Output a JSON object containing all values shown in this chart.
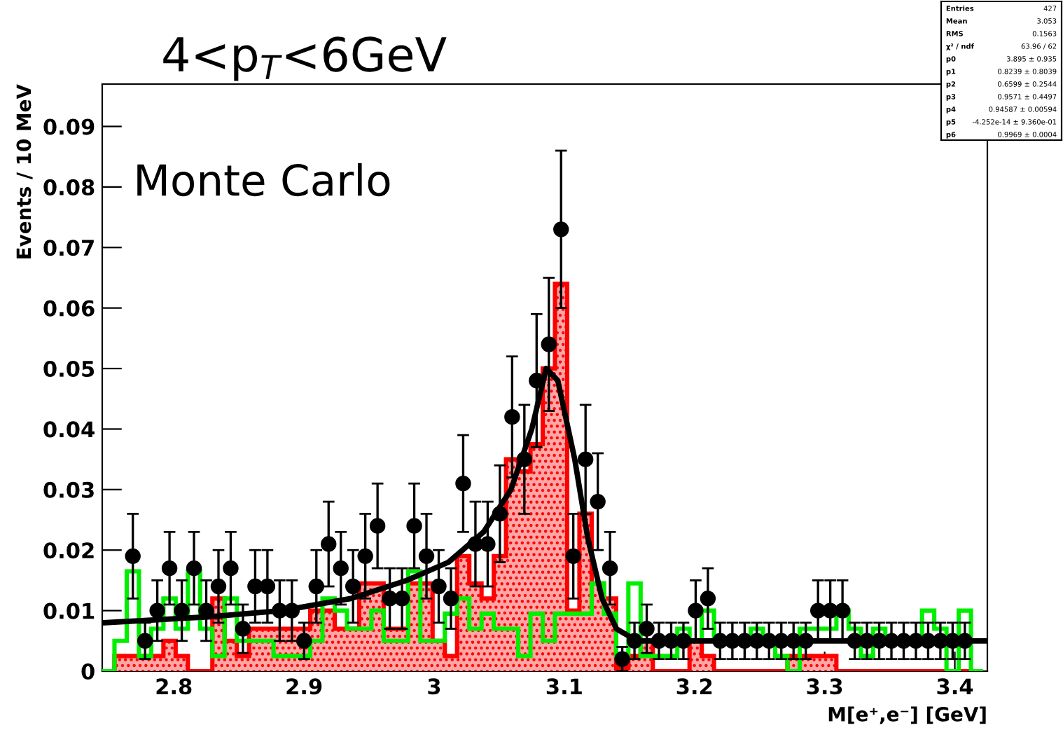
{
  "chart_data": {
    "type": "histogram",
    "title": "4<p$_{T}$<6GeV",
    "xlabel": "M[e⁺,e⁻] [GeV]",
    "ylabel": "Events / 10 MeV",
    "annotations": [
      "Monte Carlo",
      "Entries 427",
      "Mean 3.053",
      "RMS 0.1563",
      "χ² / ndf 63.96 / 62",
      "p0 3.895 ± 0.935",
      "p1 0.8239 ± 0.8039",
      "p2 0.6599 ± 0.2544",
      "p3 0.9571 ± 0.4497",
      "p4 0.94587 ± 0.00594",
      "p5 -4.252e-14 ± 9.360e-01",
      "p6 0.9969 ± 0.0004"
    ],
    "bins": [
      2.745,
      2.7544,
      2.7638,
      2.7732,
      2.7826,
      2.792,
      2.8014,
      2.8108,
      2.8202,
      2.8296,
      2.839,
      2.8484,
      2.8578,
      2.8672,
      2.8766,
      2.886,
      2.8954,
      2.9048,
      2.9142,
      2.9236,
      2.933,
      2.9424,
      2.9518,
      2.9612,
      2.9706,
      2.98,
      2.9894,
      2.9988,
      3.0082,
      3.0176,
      3.027,
      3.0364,
      3.0458,
      3.0552,
      3.0646,
      3.074,
      3.0834,
      3.0928,
      3.1022,
      3.1116,
      3.121,
      3.1304,
      3.1398,
      3.1492,
      3.1586,
      3.168,
      3.1774,
      3.1868,
      3.1962,
      3.2056,
      3.215,
      3.2244,
      3.2338,
      3.2432,
      3.2526,
      3.262,
      3.2714,
      3.2808,
      3.2902,
      3.2996,
      3.309,
      3.3184,
      3.3278,
      3.3372,
      3.3466,
      3.356,
      3.3654,
      3.3748,
      3.3842,
      3.3936,
      3.403,
      3.4124,
      3.4218
    ],
    "series": [
      {
        "color": "#00ee00",
        "values": [
          0,
          0.005,
          0.0165,
          0.0025,
          0.007,
          0.012,
          0.007,
          0.0165,
          0.007,
          0.0025,
          0.012,
          0.005,
          0.005,
          0.005,
          0.0025,
          0.0025,
          0.0025,
          0.005,
          0.012,
          0.01,
          0.007,
          0.007,
          0.01,
          0.005,
          0.005,
          0.0165,
          0.005,
          0.005,
          0.0095,
          0.012,
          0.007,
          0.0095,
          0.007,
          0.007,
          0.0025,
          0.0095,
          0.005,
          0.0095,
          0.0095,
          0.0095,
          0.0145,
          0.0095,
          0.0025,
          0.0145,
          0.0025,
          0.0025,
          0.0025,
          0.007,
          0.005,
          0.01,
          0.005,
          0.005,
          0.005,
          0.007,
          0.005,
          0.0025,
          0,
          0.007,
          0.007,
          0.007,
          0.01,
          0.007,
          0.0025,
          0.007,
          0.005,
          0.005,
          0.005,
          0.01,
          0.007,
          0,
          0.01,
          0
        ]
      },
      {
        "color": "#ff0000",
        "values": [
          0,
          0.0025,
          0.0025,
          0.0025,
          0.0025,
          0.005,
          0.0025,
          0,
          0,
          0.012,
          0.005,
          0.0025,
          0.007,
          0.007,
          0.007,
          0.007,
          0.007,
          0.01,
          0.01,
          0.007,
          0.007,
          0.0145,
          0.0145,
          0.007,
          0.007,
          0.0145,
          0.0145,
          0.005,
          0.0025,
          0.019,
          0.0145,
          0.012,
          0.019,
          0.035,
          0.033,
          0.0375,
          0.05,
          0.064,
          0.01,
          0.026,
          0.0145,
          0.012,
          0.0005,
          0.0025,
          0.005,
          0,
          0,
          0,
          0.005,
          0.0025,
          0,
          0,
          0,
          0,
          0,
          0,
          0.0025,
          0.0025,
          0.0025,
          0.0025,
          0,
          0,
          0,
          0,
          0,
          0,
          0,
          0,
          0,
          0,
          0,
          0
        ]
      },
      {
        "type": "scatter",
        "color": "#000000",
        "marker": "circle",
        "x": [
          2.7685,
          2.7779,
          2.7873,
          2.7967,
          2.8061,
          2.8155,
          2.8249,
          2.8343,
          2.8437,
          2.8531,
          2.8625,
          2.8719,
          2.8813,
          2.8907,
          2.9001,
          2.9095,
          2.9189,
          2.9283,
          2.9377,
          2.9471,
          2.9565,
          2.9659,
          2.9753,
          2.9847,
          2.9941,
          3.0035,
          3.0129,
          3.0223,
          3.0317,
          3.0411,
          3.0505,
          3.0599,
          3.0693,
          3.0787,
          3.0881,
          3.0975,
          3.1069,
          3.1163,
          3.1257,
          3.1351,
          3.1445,
          3.1539,
          3.1633,
          3.1727,
          3.1821,
          3.1915,
          3.2009,
          3.2103,
          3.2197,
          3.2291,
          3.2385,
          3.2479,
          3.2573,
          3.2667,
          3.2761,
          3.2855,
          3.2949,
          3.3043,
          3.3137,
          3.3231,
          3.3325,
          3.3419,
          3.3513,
          3.3607,
          3.3701,
          3.3795,
          3.3889,
          3.3983,
          3.4077
        ],
        "values": [
          0.019,
          0.005,
          0.01,
          0.017,
          0.01,
          0.017,
          0.01,
          0.014,
          0.017,
          0.007,
          0.014,
          0.014,
          0.01,
          0.01,
          0.005,
          0.014,
          0.021,
          0.017,
          0.014,
          0.019,
          0.024,
          0.012,
          0.012,
          0.024,
          0.019,
          0.014,
          0.012,
          0.031,
          0.021,
          0.021,
          0.026,
          0.042,
          0.035,
          0.048,
          0.054,
          0.073,
          0.019,
          0.035,
          0.028,
          0.017,
          0.002,
          0.005,
          0.007,
          0.005,
          0.005,
          0.005,
          0.01,
          0.012,
          0.005,
          0.005,
          0.005,
          0.005,
          0.005,
          0.005,
          0.005,
          0.005,
          0.01,
          0.01,
          0.01,
          0.005,
          0.005,
          0.005,
          0.005,
          0.005,
          0.005,
          0.005,
          0.005,
          0.005,
          0.005
        ],
        "errors": [
          0.007,
          0.003,
          0.005,
          0.006,
          0.005,
          0.006,
          0.005,
          0.006,
          0.006,
          0.004,
          0.006,
          0.006,
          0.005,
          0.005,
          0.003,
          0.006,
          0.007,
          0.006,
          0.006,
          0.007,
          0.007,
          0.005,
          0.005,
          0.007,
          0.007,
          0.006,
          0.005,
          0.008,
          0.007,
          0.007,
          0.008,
          0.01,
          0.009,
          0.011,
          0.011,
          0.013,
          0.007,
          0.009,
          0.008,
          0.006,
          0.002,
          0.003,
          0.004,
          0.003,
          0.003,
          0.003,
          0.005,
          0.005,
          0.003,
          0.003,
          0.003,
          0.003,
          0.003,
          0.003,
          0.003,
          0.003,
          0.005,
          0.005,
          0.005,
          0.003,
          0.003,
          0.003,
          0.003,
          0.003,
          0.003,
          0.003,
          0.003,
          0.003,
          0.003
        ]
      },
      {
        "type": "line",
        "color": "#000000",
        "x": [
          2.746,
          2.829,
          2.883,
          2.936,
          2.979,
          3.011,
          3.038,
          3.059,
          3.075,
          3.086,
          3.095,
          3.108,
          3.118,
          3.129,
          3.14,
          3.156,
          3.204,
          3.424
        ],
        "values": [
          0.008,
          0.009,
          0.01,
          0.012,
          0.015,
          0.018,
          0.023,
          0.03,
          0.04,
          0.05,
          0.048,
          0.035,
          0.022,
          0.012,
          0.007,
          0.005,
          0.005,
          0.005
        ]
      }
    ],
    "xlim": [
      2.745,
      3.425
    ],
    "xticks": [
      2.8,
      2.9,
      3,
      3.1,
      3.2,
      3.3,
      3.4
    ],
    "ylim": [
      0,
      0.097
    ],
    "yticks": [
      0,
      0.01,
      0.02,
      0.03,
      0.04,
      0.05,
      0.06,
      0.07,
      0.08,
      0.09
    ],
    "grid": false,
    "legend": false
  }
}
